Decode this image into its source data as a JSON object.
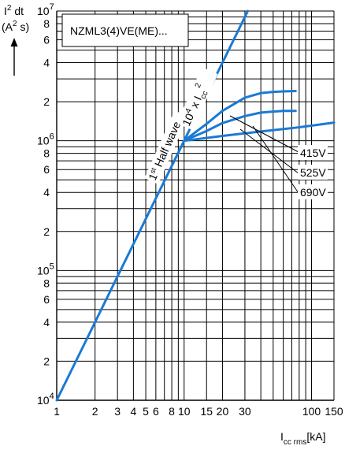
{
  "chart_data": {
    "type": "line",
    "x_scale": "log",
    "y_scale": "log",
    "xlim": [
      1,
      150
    ],
    "ylim": [
      10000,
      10000000
    ],
    "grid": true,
    "legend_box": "NZML3(4)VE(ME)...",
    "ylabel": {
      "l1_main": "I",
      "l1_sup": "2",
      "l1_rest": " dt",
      "l2_pre": "(A",
      "l2_sup": "2",
      "l2_post": " s)"
    },
    "xlabel": {
      "main": "I",
      "sub": "cc rms",
      "unit": "[kA]"
    },
    "x_ticks": [
      {
        "value": 1,
        "label": "1"
      },
      {
        "value": 2,
        "label": "2"
      },
      {
        "value": 3,
        "label": "3"
      },
      {
        "value": 4,
        "label": "4"
      },
      {
        "value": 5,
        "label": "5"
      },
      {
        "value": 6,
        "label": "6"
      },
      {
        "value": 8,
        "label": "8"
      },
      {
        "value": 10,
        "label": "10"
      },
      {
        "value": 15,
        "label": "15"
      },
      {
        "value": 20,
        "label": "20"
      },
      {
        "value": 30,
        "label": "30"
      },
      {
        "value": 100,
        "label": "100"
      },
      {
        "value": 150,
        "label": "150"
      }
    ],
    "x_grid": [
      1,
      2,
      3,
      4,
      5,
      6,
      7,
      8,
      9,
      10,
      15,
      20,
      30,
      40,
      50,
      60,
      70,
      80,
      90,
      100,
      150
    ],
    "y_ticks": [
      {
        "value": 10000,
        "base": "10",
        "exp": "4"
      },
      {
        "value": 20000,
        "base": "2"
      },
      {
        "value": 40000,
        "base": "4"
      },
      {
        "value": 60000,
        "base": "6"
      },
      {
        "value": 80000,
        "base": "8"
      },
      {
        "value": 100000,
        "base": "10",
        "exp": "5"
      },
      {
        "value": 200000,
        "base": "2"
      },
      {
        "value": 400000,
        "base": "4"
      },
      {
        "value": 600000,
        "base": "6"
      },
      {
        "value": 800000,
        "base": "8"
      },
      {
        "value": 1000000,
        "base": "10",
        "exp": "6"
      },
      {
        "value": 2000000,
        "base": "2"
      },
      {
        "value": 4000000,
        "base": "4"
      },
      {
        "value": 6000000,
        "base": "6"
      },
      {
        "value": 8000000,
        "base": "8"
      },
      {
        "value": 10000000,
        "base": "10",
        "exp": "7"
      }
    ],
    "y_grid": [
      10000,
      20000,
      30000,
      40000,
      50000,
      60000,
      70000,
      80000,
      90000,
      100000,
      200000,
      300000,
      400000,
      500000,
      600000,
      700000,
      800000,
      900000,
      1000000,
      2000000,
      3000000,
      4000000,
      5000000,
      6000000,
      7000000,
      8000000,
      9000000,
      10000000
    ],
    "series": [
      {
        "name": "1st Half wave",
        "x": [
          1,
          10,
          31.6
        ],
        "y": [
          10000,
          1000000,
          10000000
        ]
      },
      {
        "name": "415V",
        "x": [
          10,
          15,
          20,
          30,
          40,
          50,
          60,
          75
        ],
        "y": [
          1000000,
          1350000,
          1700000,
          2150000,
          2330000,
          2380000,
          2400000,
          2420000
        ]
      },
      {
        "name": "525V",
        "x": [
          10,
          15,
          20,
          30,
          40,
          50,
          60,
          75
        ],
        "y": [
          1000000,
          1190000,
          1370000,
          1550000,
          1650000,
          1680000,
          1700000,
          1700000
        ]
      },
      {
        "name": "690V",
        "x": [
          10,
          20,
          40,
          80,
          150
        ],
        "y": [
          1000000,
          1090000,
          1180000,
          1270000,
          1380000
        ]
      }
    ],
    "annotations": {
      "half_wave": {
        "base": "1",
        "sup": "st",
        "rest": " Half wave"
      },
      "formula": {
        "pre": "10",
        "sup": "4",
        "mid": " x I",
        "sub": "cc",
        "sup2": "2"
      },
      "voltage_labels": [
        "415V",
        "525V",
        "690V"
      ]
    },
    "line_color": "#1a7ad4"
  }
}
